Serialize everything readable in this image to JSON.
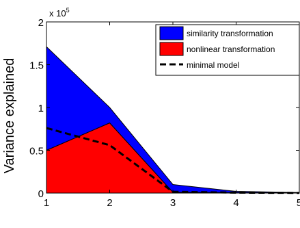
{
  "chart_data": {
    "type": "area",
    "title": "",
    "xlabel": "",
    "ylabel": "Variance explained",
    "x": [
      1,
      2,
      3,
      4,
      5
    ],
    "xlim": [
      1,
      5
    ],
    "ylim": [
      0,
      200000
    ],
    "xticks": [
      "1",
      "2",
      "3",
      "4",
      "5"
    ],
    "yticks": [
      "0",
      "0.5",
      "1",
      "1.5",
      "2"
    ],
    "ytick_values": [
      0,
      50000,
      100000,
      150000,
      200000
    ],
    "y_exponent_label": {
      "base": "x 10",
      "exponent": "5"
    },
    "stacked": true,
    "grid": false,
    "legend_position": "top-right",
    "series": [
      {
        "name": "nonlinear transformation",
        "type": "area",
        "color": "#ff0000",
        "values": [
          50000,
          82000,
          1000,
          500,
          200
        ]
      },
      {
        "name": "similarity transformation",
        "type": "area",
        "color": "#0000ff",
        "values": [
          121000,
          18000,
          9000,
          1500,
          500
        ]
      },
      {
        "name": "minimal model",
        "type": "line",
        "style": "dashed",
        "color": "#000000",
        "values": [
          76000,
          56000,
          1500,
          500,
          200
        ]
      }
    ]
  }
}
